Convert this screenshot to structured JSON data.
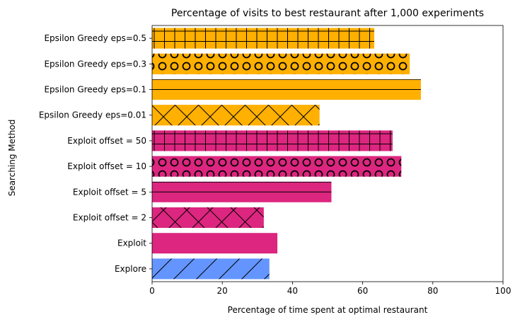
{
  "chart_data": {
    "type": "bar",
    "orientation": "horizontal",
    "title": "Percentage of visits to best restaurant after 1,000 experiments",
    "xlabel": "Percentage of time spent at optimal restaurant",
    "ylabel": "Searching Method",
    "xlim": [
      0,
      100
    ],
    "xticks": [
      "0",
      "20",
      "40",
      "60",
      "80",
      "100"
    ],
    "grid": false,
    "categories": [
      "Explore",
      "Exploit",
      "Exploit offset = 2",
      "Exploit offset = 5",
      "Exploit offset = 10",
      "Exploit offset = 50",
      "Epsilon Greedy eps=0.01",
      "Epsilon Greedy eps=0.1",
      "Epsilon Greedy eps=0.3",
      "Epsilon Greedy eps=0.5"
    ],
    "values": [
      33.4,
      35.7,
      31.8,
      51.1,
      71.0,
      68.5,
      47.7,
      76.6,
      73.4,
      63.3
    ],
    "colors": [
      "#6495ff",
      "#dc267f",
      "#dc267f",
      "#dc267f",
      "#dc267f",
      "#dc267f",
      "#ffb000",
      "#ffb000",
      "#ffb000",
      "#ffb000"
    ],
    "hatches": [
      "/",
      "",
      "x",
      "-",
      "o",
      "+",
      "x",
      "-",
      "o",
      "+"
    ]
  }
}
